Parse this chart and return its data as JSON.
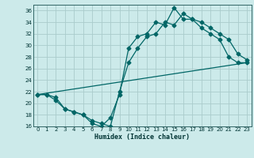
{
  "xlabel": "Humidex (Indice chaleur)",
  "bg_color": "#cceaea",
  "line_color": "#006666",
  "grid_color": "#aacccc",
  "xlim": [
    -0.5,
    23.5
  ],
  "ylim": [
    16,
    37
  ],
  "xticks": [
    0,
    1,
    2,
    3,
    4,
    5,
    6,
    7,
    8,
    9,
    10,
    11,
    12,
    13,
    14,
    15,
    16,
    17,
    18,
    19,
    20,
    21,
    22,
    23
  ],
  "yticks": [
    16,
    18,
    20,
    22,
    24,
    26,
    28,
    30,
    32,
    34,
    36
  ],
  "line1_x": [
    0,
    1,
    2,
    3,
    4,
    5,
    6,
    7,
    8,
    9,
    10,
    11,
    12,
    13,
    14,
    15,
    16,
    17,
    18,
    19,
    20,
    21,
    22,
    23
  ],
  "line1_y": [
    21.5,
    21.5,
    21.0,
    19.0,
    18.5,
    18.0,
    16.5,
    16.0,
    17.5,
    21.5,
    29.5,
    31.5,
    32.0,
    34.0,
    33.5,
    36.5,
    34.5,
    34.5,
    33.0,
    32.0,
    31.0,
    28.0,
    27.0,
    27.0
  ],
  "line2_x": [
    0,
    1,
    2,
    3,
    4,
    5,
    6,
    7,
    8,
    9,
    10,
    11,
    12,
    13,
    14,
    15,
    16,
    17,
    18,
    19,
    20,
    21,
    22,
    23
  ],
  "line2_y": [
    21.5,
    21.5,
    20.5,
    19.0,
    18.5,
    18.0,
    17.0,
    16.5,
    16.0,
    22.0,
    27.0,
    29.5,
    31.5,
    32.0,
    34.0,
    33.5,
    35.5,
    34.5,
    34.0,
    33.0,
    32.0,
    31.0,
    28.5,
    27.5
  ],
  "line3_x": [
    0,
    23
  ],
  "line3_y": [
    21.5,
    27.0
  ]
}
